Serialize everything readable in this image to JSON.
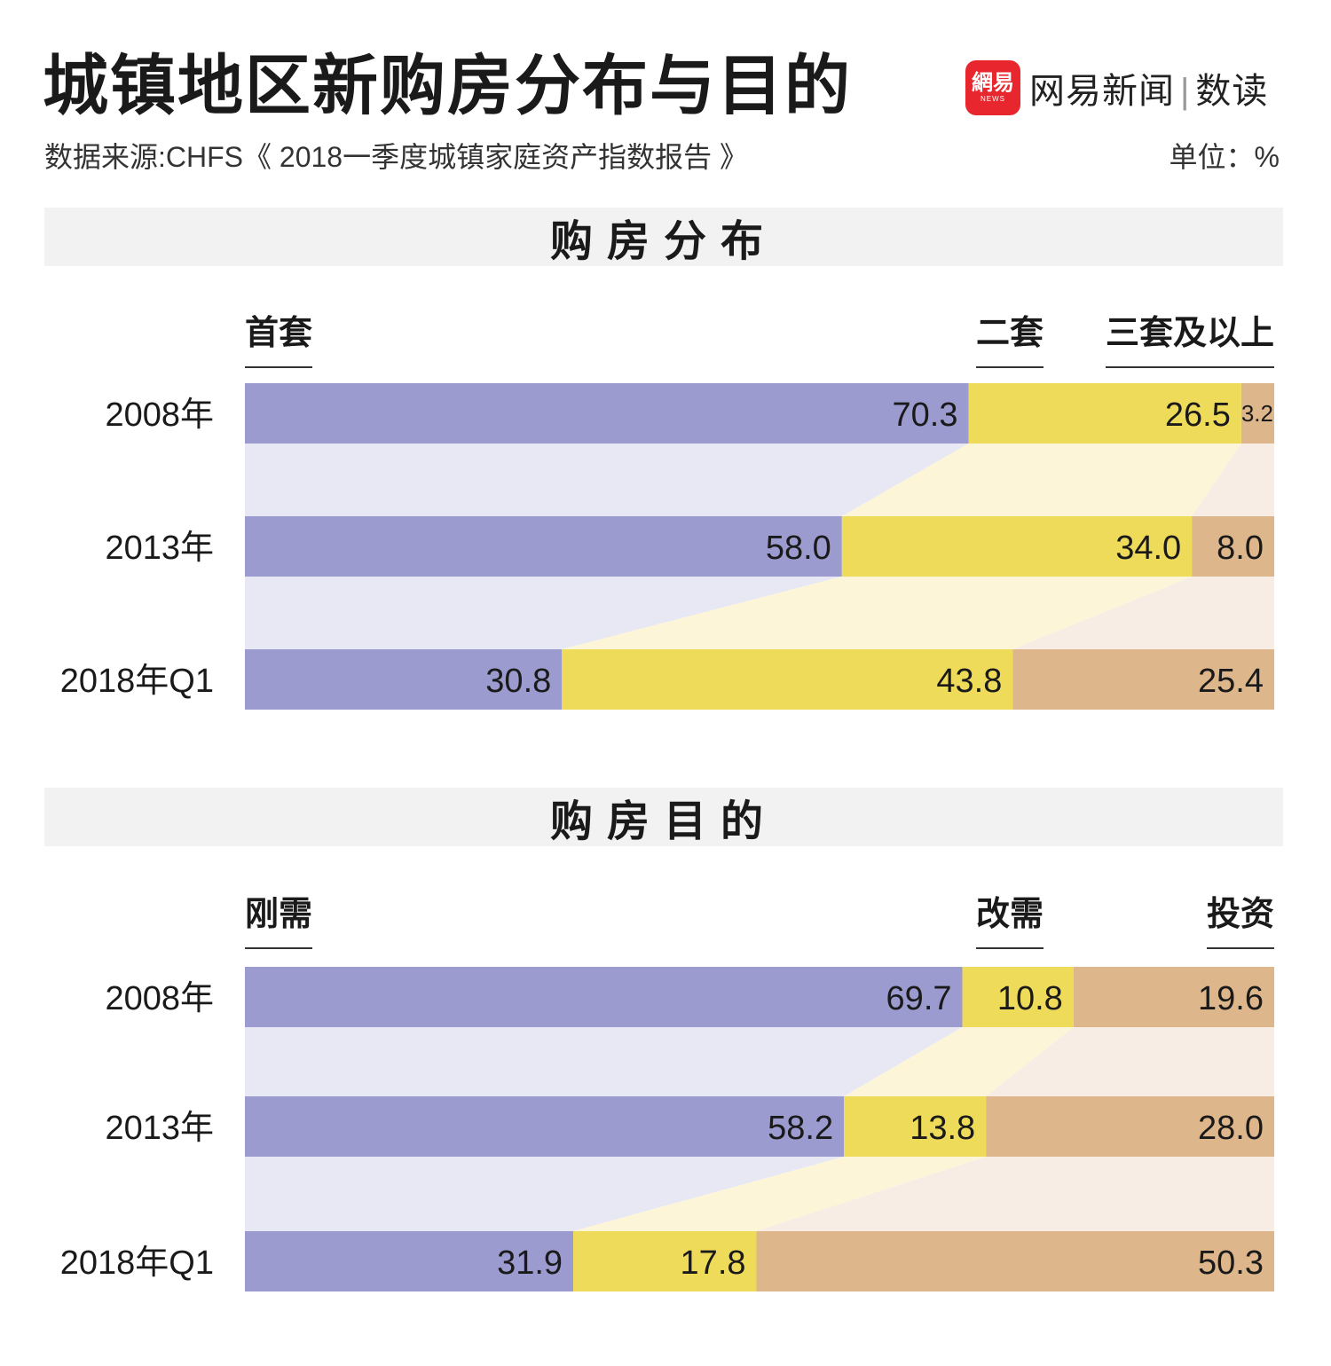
{
  "header": {
    "title": "城镇地区新购房分布与目的",
    "source": "数据来源:CHFS《 2018一季度城镇家庭资产指数报告 》",
    "unit": "单位：%",
    "logo_badge": "網易",
    "logo_badge_sub": "NEWS",
    "logo_name": "网易新闻",
    "logo_sep": "|",
    "logo_sub": "数读"
  },
  "colors": {
    "purple": "#9b9bcf",
    "yellow": "#efdb5a",
    "tan": "#ddb68b",
    "purple_band": "#e8e8f4",
    "yellow_band": "#fcf5d8",
    "tan_band": "#f7ede4"
  },
  "chart_data": [
    {
      "type": "bar",
      "title": "购房分布",
      "stacked": true,
      "categories": [
        "2008年",
        "2013年",
        "2018年Q1"
      ],
      "series": [
        {
          "name": "首套",
          "values": [
            70.3,
            58.0,
            30.8
          ]
        },
        {
          "name": "二套",
          "values": [
            26.5,
            34.0,
            43.8
          ]
        },
        {
          "name": "三套及以上",
          "values": [
            3.2,
            8.0,
            25.4
          ]
        }
      ],
      "value_labels": [
        [
          "70.3",
          "58.0",
          "30.8"
        ],
        [
          "26.5",
          "34.0",
          "43.8"
        ],
        [
          "3.2",
          "8.0",
          "25.4"
        ]
      ],
      "xlim": [
        0,
        100
      ]
    },
    {
      "type": "bar",
      "title": "购房目的",
      "stacked": true,
      "categories": [
        "2008年",
        "2013年",
        "2018年Q1"
      ],
      "series": [
        {
          "name": "刚需",
          "values": [
            69.7,
            58.2,
            31.9
          ]
        },
        {
          "name": "改需",
          "values": [
            10.8,
            13.8,
            17.8
          ]
        },
        {
          "name": "投资",
          "values": [
            19.6,
            28.0,
            50.3
          ]
        }
      ],
      "value_labels": [
        [
          "69.7",
          "58.2",
          "31.9"
        ],
        [
          "10.8",
          "13.8",
          "17.8"
        ],
        [
          "19.6",
          "28.0",
          "50.3"
        ]
      ],
      "xlim": [
        0,
        100
      ]
    }
  ]
}
